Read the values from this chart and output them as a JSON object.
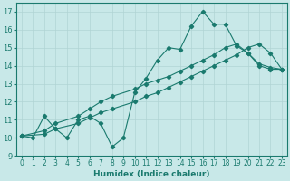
{
  "line1_x": [
    0,
    1,
    2,
    3,
    4,
    5,
    6,
    7,
    8,
    9,
    10,
    11,
    12,
    13,
    14,
    15,
    16,
    17,
    18,
    19,
    20,
    21,
    22,
    23
  ],
  "line1_y": [
    10.1,
    10.0,
    11.2,
    10.5,
    10.0,
    11.0,
    11.2,
    10.8,
    9.5,
    10.0,
    12.5,
    13.3,
    14.3,
    15.0,
    14.9,
    16.2,
    17.0,
    16.3,
    16.3,
    15.1,
    14.7,
    14.0,
    13.8,
    13.8
  ],
  "line2_x": [
    0,
    2,
    3,
    5,
    6,
    7,
    8,
    10,
    11,
    12,
    13,
    14,
    15,
    16,
    17,
    18,
    19,
    20,
    21,
    22,
    23
  ],
  "line2_y": [
    10.1,
    10.4,
    10.8,
    11.2,
    11.6,
    12.0,
    12.3,
    12.7,
    13.0,
    13.2,
    13.4,
    13.7,
    14.0,
    14.3,
    14.6,
    15.0,
    15.2,
    14.7,
    14.1,
    13.9,
    13.8
  ],
  "line3_x": [
    0,
    2,
    3,
    5,
    6,
    7,
    8,
    10,
    11,
    12,
    13,
    14,
    15,
    16,
    17,
    18,
    19,
    20,
    21,
    22,
    23
  ],
  "line3_y": [
    10.1,
    10.2,
    10.5,
    10.8,
    11.1,
    11.4,
    11.6,
    12.0,
    12.3,
    12.5,
    12.8,
    13.1,
    13.4,
    13.7,
    14.0,
    14.3,
    14.6,
    15.0,
    15.2,
    14.7,
    13.8
  ],
  "line_color": "#1a7a6e",
  "bg_color": "#c8e8e8",
  "grid_color": "#b0d4d4",
  "xlabel": "Humidex (Indice chaleur)",
  "ylim": [
    9,
    17.5
  ],
  "xlim": [
    -0.5,
    23.5
  ],
  "yticks": [
    9,
    10,
    11,
    12,
    13,
    14,
    15,
    16,
    17
  ],
  "xticks": [
    0,
    1,
    2,
    3,
    4,
    5,
    6,
    7,
    8,
    9,
    10,
    11,
    12,
    13,
    14,
    15,
    16,
    17,
    18,
    19,
    20,
    21,
    22,
    23
  ],
  "tick_fontsize": 5.5,
  "xlabel_fontsize": 6.5
}
